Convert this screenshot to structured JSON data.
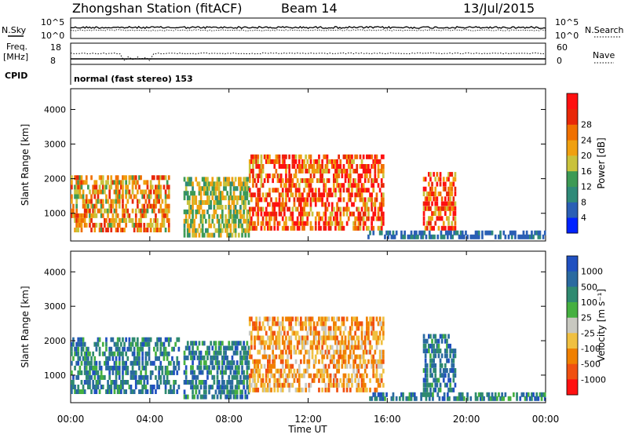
{
  "header": {
    "station": "Zhongshan Station (fitACF)",
    "beam": "Beam 14",
    "date": "13/Jul/2015"
  },
  "strip": {
    "nsky_label": "N.Sky",
    "nsearch_label": "N.Search",
    "nsky_ticks": [
      "10^5",
      "10^0"
    ],
    "nsearch_ticks": [
      "10^5",
      "10^0"
    ],
    "freq_label_1": "Freq.",
    "freq_label_2": "[MHz]",
    "freq_ticks": [
      "18",
      "8"
    ],
    "nave_label": "Nave",
    "nave_ticks": [
      "60",
      "0"
    ],
    "cpid_label": "CPID",
    "cpid_value": "normal (fast stereo) 153"
  },
  "x_axis": {
    "label": "Time UT",
    "ticks": [
      "00:00",
      "04:00",
      "08:00",
      "12:00",
      "16:00",
      "20:00",
      "00:00"
    ]
  },
  "chart_data": [
    {
      "type": "heatmap",
      "name": "power",
      "ylabel": "Slant Range [km]",
      "yticks": [
        "1000",
        "2000",
        "3000",
        "4000"
      ],
      "ylim": [
        200,
        4600
      ],
      "xlim": [
        0,
        24
      ],
      "colorbar": {
        "label": "Power [dB]",
        "ticks": [
          "4",
          "8",
          "12",
          "16",
          "20",
          "24",
          "28"
        ],
        "colors": [
          "#0022ff",
          "#2a5fb5",
          "#2f8a78",
          "#3d9a55",
          "#c9c23c",
          "#f0a010",
          "#f07000",
          "#e82808",
          "#ff1010"
        ]
      },
      "echo_regions": [
        {
          "t": [
            0.0,
            5.0
          ],
          "r": [
            450,
            2100
          ],
          "peak": 24
        },
        {
          "t": [
            5.7,
            9.0
          ],
          "r": [
            300,
            2050
          ],
          "peak": 18
        },
        {
          "t": [
            9.0,
            15.8
          ],
          "r": [
            500,
            2700
          ],
          "peak": 30
        },
        {
          "t": [
            17.8,
            19.5
          ],
          "r": [
            500,
            2200
          ],
          "peak": 30
        },
        {
          "t": [
            15.0,
            24.0
          ],
          "r": [
            250,
            480
          ],
          "peak": 8
        }
      ]
    },
    {
      "type": "heatmap",
      "name": "velocity",
      "ylabel": "Slant Range [km]",
      "yticks": [
        "1000",
        "2000",
        "3000",
        "4000"
      ],
      "ylim": [
        200,
        4600
      ],
      "xlim": [
        0,
        24
      ],
      "colorbar": {
        "label": "Velocity [m s⁻¹]",
        "ticks": [
          "1000",
          "500",
          "100",
          "25",
          "-25",
          "-100",
          "-500",
          "-1000"
        ],
        "colors": [
          "#2050c0",
          "#2a6aa0",
          "#2f8a70",
          "#45b040",
          "#c8c8c0",
          "#f0c040",
          "#f08000",
          "#f05010",
          "#ff1010"
        ]
      },
      "echo_regions": [
        {
          "t": [
            0.0,
            5.5
          ],
          "r": [
            450,
            2100
          ],
          "v": 100
        },
        {
          "t": [
            5.7,
            9.0
          ],
          "r": [
            300,
            2000
          ],
          "v": 100
        },
        {
          "t": [
            9.0,
            15.8
          ],
          "r": [
            500,
            2700
          ],
          "v": -500
        },
        {
          "t": [
            17.8,
            19.5
          ],
          "r": [
            500,
            2200
          ],
          "v": 100
        },
        {
          "t": [
            15.0,
            24.0
          ],
          "r": [
            250,
            480
          ],
          "v": 100
        }
      ]
    }
  ]
}
